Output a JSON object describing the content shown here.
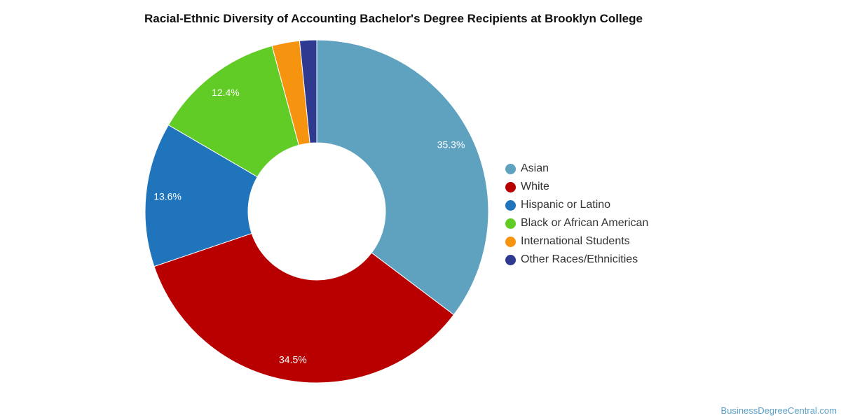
{
  "chart_data": {
    "type": "pie",
    "variant": "donut",
    "title": "Racial-Ethnic Diversity of Accounting Bachelor's Degree Recipients at Brooklyn College",
    "categories": [
      "Asian",
      "White",
      "Hispanic or Latino",
      "Black or African American",
      "International Students",
      "Other Races/Ethnicities"
    ],
    "values": [
      35.3,
      34.5,
      13.6,
      12.4,
      2.6,
      1.6
    ],
    "data_labels": [
      "35.3%",
      "34.5%",
      "13.6%",
      "12.4%",
      "",
      ""
    ],
    "colors": [
      "#5ea2c0",
      "#b80000",
      "#1f74bb",
      "#61cc26",
      "#f7940f",
      "#2d3a8f"
    ],
    "legend_position": "right"
  },
  "footer": {
    "source": "BusinessDegreeCentral.com"
  }
}
